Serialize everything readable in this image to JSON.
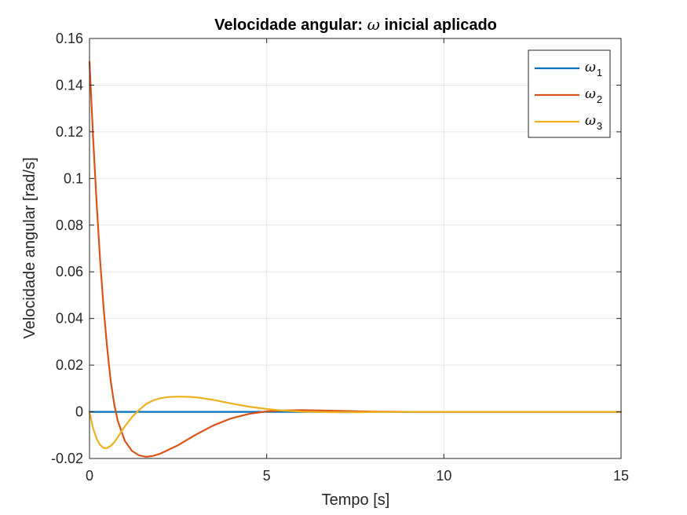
{
  "chart_data": {
    "type": "line",
    "title": {
      "prefix": "Velocidade angular: ",
      "symbol": "ω",
      "suffix": " inicial aplicado"
    },
    "xlabel": "Tempo [s]",
    "ylabel": "Velocidade angular [rad/s]",
    "xlim": [
      0,
      15
    ],
    "ylim": [
      -0.02,
      0.16
    ],
    "xticks": [
      0,
      5,
      10,
      15
    ],
    "xtick_labels": [
      "0",
      "5",
      "10",
      "15"
    ],
    "yticks": [
      -0.02,
      0,
      0.02,
      0.04,
      0.06,
      0.08,
      0.1,
      0.12,
      0.14,
      0.16
    ],
    "ytick_labels": [
      "-0.02",
      "0",
      "0.02",
      "0.04",
      "0.06",
      "0.08",
      "0.1",
      "0.12",
      "0.14",
      "0.16"
    ],
    "grid": true,
    "legend_placement": "top-right",
    "series": [
      {
        "name": "ω1",
        "symbol": "ω",
        "subscript": "1",
        "color": "#0072BD",
        "x": [
          0,
          15
        ],
        "y": [
          0,
          0
        ]
      },
      {
        "name": "ω2",
        "symbol": "ω",
        "subscript": "2",
        "color": "#D95319",
        "x": [
          0,
          0.1,
          0.2,
          0.3,
          0.4,
          0.5,
          0.6,
          0.7,
          0.8,
          1.0,
          1.2,
          1.4,
          1.6,
          1.8,
          2.0,
          2.5,
          3.0,
          3.5,
          4.0,
          4.5,
          5.0,
          5.5,
          6.0,
          6.5,
          7.0,
          8.0,
          9.0,
          10.0,
          15.0
        ],
        "y": [
          0.15,
          0.118,
          0.09,
          0.065,
          0.044,
          0.027,
          0.013,
          0.003,
          -0.004,
          -0.0125,
          -0.0168,
          -0.0187,
          -0.0193,
          -0.0189,
          -0.0179,
          -0.0143,
          -0.0098,
          -0.0058,
          -0.0028,
          -0.0009,
          0.0002,
          0.0006,
          0.0007,
          0.0006,
          0.0004,
          0.0001,
          0,
          0,
          0
        ]
      },
      {
        "name": "ω3",
        "symbol": "ω",
        "subscript": "3",
        "color": "#EDB120",
        "x": [
          0,
          0.1,
          0.2,
          0.3,
          0.4,
          0.5,
          0.6,
          0.7,
          0.8,
          1.0,
          1.2,
          1.4,
          1.6,
          1.8,
          2.0,
          2.2,
          2.5,
          2.8,
          3.0,
          3.5,
          4.0,
          4.5,
          5.0,
          5.5,
          6.0,
          7.0,
          8.0,
          9.0,
          10.0,
          15.0
        ],
        "y": [
          0,
          -0.007,
          -0.0115,
          -0.0142,
          -0.0155,
          -0.0155,
          -0.0146,
          -0.013,
          -0.0108,
          -0.0062,
          -0.0022,
          0.0008,
          0.0034,
          0.0049,
          0.0058,
          0.0063,
          0.0065,
          0.0064,
          0.0062,
          0.0051,
          0.0036,
          0.0022,
          0.0012,
          0.0005,
          0.0001,
          -0.0002,
          -0.0001,
          0,
          0,
          0
        ]
      }
    ]
  }
}
